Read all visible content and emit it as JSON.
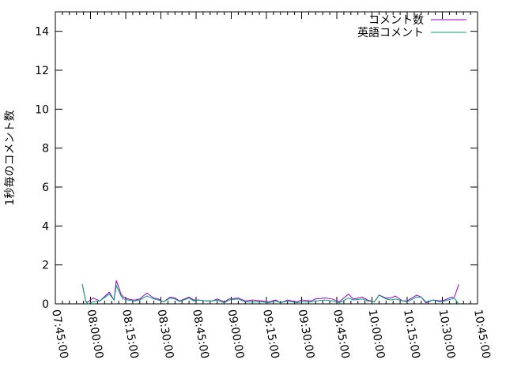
{
  "chart_data": {
    "type": "line",
    "title": "",
    "xlabel": "",
    "ylabel": "1秒毎のコメント数",
    "xlim": [
      "07:45:00",
      "10:45:00"
    ],
    "ylim": [
      0,
      15
    ],
    "grid": false,
    "legend_position": "top-right",
    "xtick_labels": [
      "07:45:00",
      "08:00:00",
      "08:15:00",
      "08:30:00",
      "08:45:00",
      "09:00:00",
      "09:15:00",
      "09:30:00",
      "09:45:00",
      "10:00:00",
      "10:15:00",
      "10:30:00",
      "10:45:00"
    ],
    "ytick_labels": [
      "0",
      "2",
      "4",
      "6",
      "8",
      "10",
      "12",
      "14"
    ],
    "x": [
      "07:56:30",
      "07:58",
      "07:59",
      "08:01",
      "08:04",
      "08:08",
      "08:10",
      "08:11",
      "08:13",
      "08:14",
      "08:16",
      "08:18",
      "08:19",
      "08:21",
      "08:24",
      "08:27",
      "08:29",
      "08:31",
      "08:34",
      "08:36",
      "08:38",
      "08:42",
      "08:44",
      "08:46",
      "08:49",
      "08:52",
      "08:54",
      "08:57",
      "08:59",
      "09:03",
      "09:06",
      "09:09",
      "09:13",
      "09:16",
      "09:19",
      "09:21",
      "09:24",
      "09:28",
      "09:30",
      "09:34",
      "09:36",
      "09:40",
      "09:43",
      "09:46",
      "09:50",
      "09:52",
      "09:56",
      "09:58",
      "10:01",
      "10:03",
      "10:06",
      "10:08",
      "10:10",
      "10:13",
      "10:15",
      "10:19",
      "10:21",
      "10:23",
      "10:26",
      "10:29",
      "10:31",
      "10:34",
      "10:35",
      "10:37"
    ],
    "series": [
      {
        "name": "コメント数",
        "color": "#9400d3",
        "values": [
          1.0,
          0.1,
          0.1,
          0.3,
          0.15,
          0.6,
          0.2,
          1.2,
          0.5,
          0.35,
          0.25,
          0.2,
          0.2,
          0.25,
          0.55,
          0.3,
          0.25,
          0.1,
          0.35,
          0.3,
          0.15,
          0.35,
          0.2,
          0.2,
          0.15,
          0.15,
          0.25,
          0.1,
          0.25,
          0.3,
          0.15,
          0.2,
          0.15,
          0.1,
          0.2,
          0.05,
          0.2,
          0.1,
          0.2,
          0.15,
          0.25,
          0.3,
          0.25,
          0.1,
          0.5,
          0.25,
          0.35,
          0.2,
          0.1,
          0.45,
          0.3,
          0.3,
          0.4,
          0.15,
          0.15,
          0.45,
          0.35,
          0.05,
          0.2,
          0.15,
          0.2,
          0.35,
          0.3,
          1.0
        ]
      },
      {
        "name": "英語コメント",
        "color": "#009e73",
        "values": [
          1.0,
          0.1,
          0.0,
          0.1,
          0.15,
          0.5,
          0.2,
          0.95,
          0.4,
          0.25,
          0.2,
          0.15,
          0.15,
          0.2,
          0.4,
          0.25,
          0.2,
          0.1,
          0.3,
          0.25,
          0.12,
          0.3,
          0.15,
          0.2,
          0.15,
          0.15,
          0.2,
          0.05,
          0.2,
          0.25,
          0.1,
          0.1,
          0.1,
          0.05,
          0.15,
          0.05,
          0.15,
          0.05,
          0.1,
          0.1,
          0.15,
          0.2,
          0.15,
          0.05,
          0.3,
          0.2,
          0.25,
          0.15,
          0.1,
          0.45,
          0.25,
          0.2,
          0.25,
          0.15,
          0.1,
          0.35,
          0.35,
          0.1,
          0.2,
          0.1,
          0.15,
          0.25,
          0.3,
          0.0
        ]
      }
    ]
  }
}
